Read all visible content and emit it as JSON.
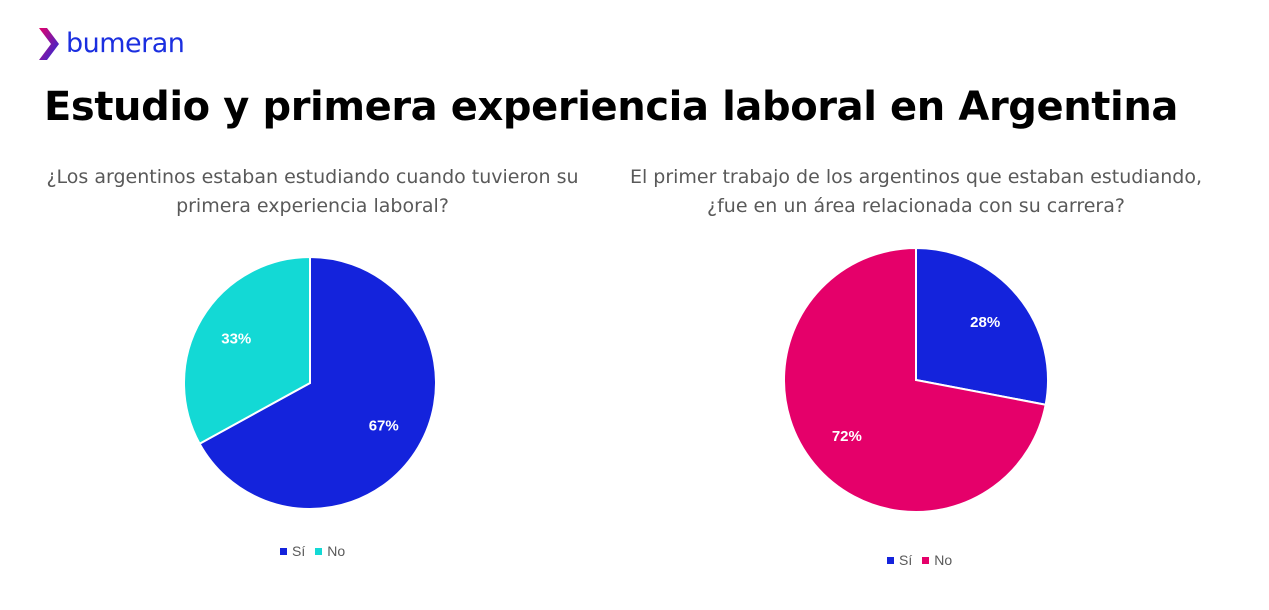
{
  "brand": {
    "name": "bumeran",
    "color": "#1b2fe0",
    "icon": "chevron-logo-icon"
  },
  "title": "Estudio y primera experiencia laboral en Argentina",
  "chart_data": [
    {
      "type": "pie",
      "title": "¿Los argentinos estaban estudiando cuando tuvieron su primera experiencia laboral?",
      "categories": [
        "Sí",
        "No"
      ],
      "values": [
        67,
        33
      ],
      "labels": [
        "67%",
        "33%"
      ],
      "colors": [
        "#1423dc",
        "#13d9d5"
      ],
      "legend": "bottom"
    },
    {
      "type": "pie",
      "title": "El primer trabajo de los argentinos que estaban estudiando, ¿fue en un área relacionada con su carrera?",
      "categories": [
        "Sí",
        "No"
      ],
      "values": [
        28,
        72
      ],
      "labels": [
        "28%",
        "72%"
      ],
      "colors": [
        "#1423dc",
        "#e5006a"
      ],
      "legend": "bottom"
    }
  ]
}
